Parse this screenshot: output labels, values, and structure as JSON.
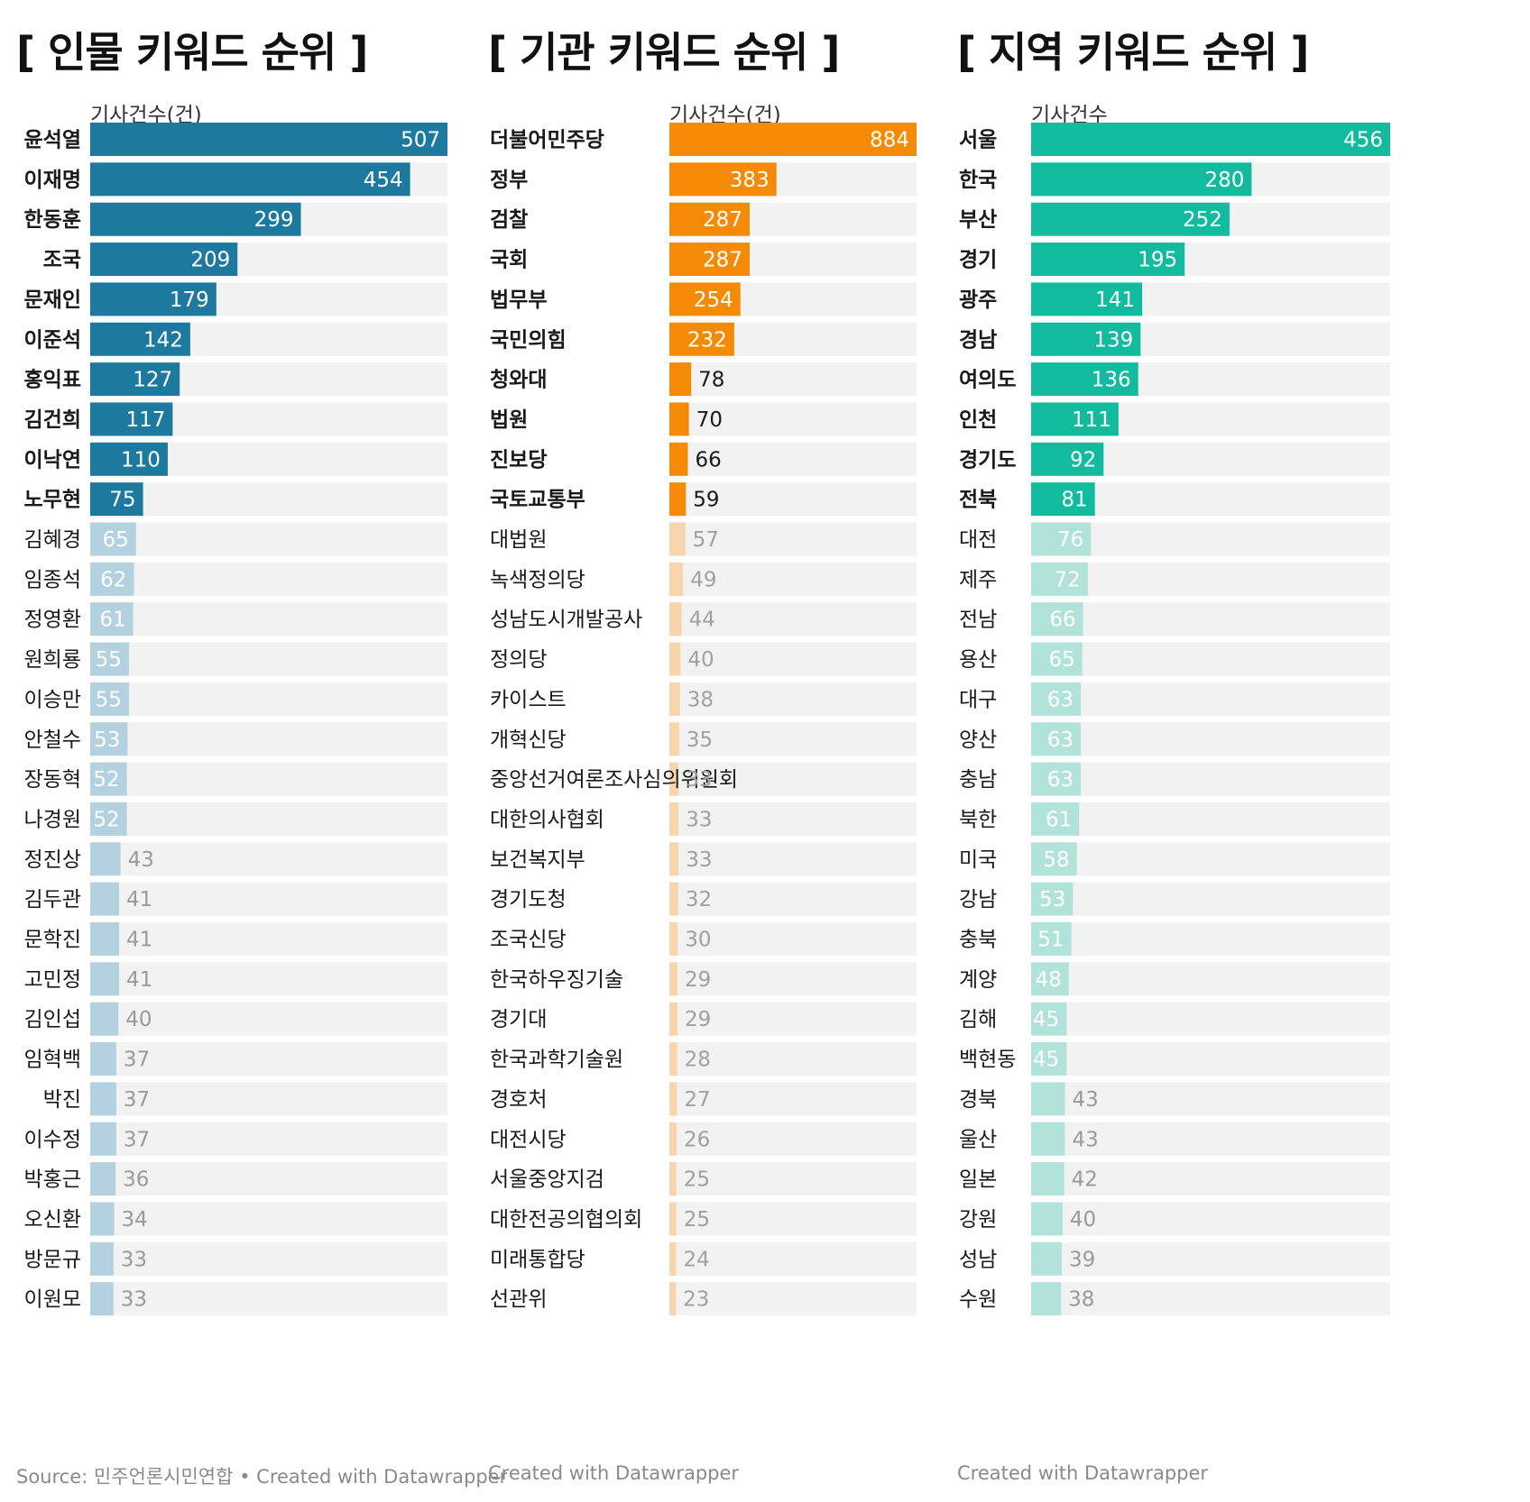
{
  "panels": [
    {
      "title": "[ 인물 키워드 순위 ]",
      "axis_label": "기사건수(건)",
      "footer": "Source: 민주언론시민연합 • Created with Datawrapper",
      "colors": {
        "highlight": "#1d7a9e",
        "muted": "#b3d1de",
        "track": "#f2f2f2",
        "label_in_highlight": "#ffffff",
        "label_in_muted": "#ffffff",
        "label_outside": "#9a9a9a"
      }
    },
    {
      "title": "[ 기관 키워드 순위 ]",
      "axis_label": "기사건수(건)",
      "footer": "Created with Datawrapper",
      "colors": {
        "highlight": "#f58a07",
        "muted": "#f7d6ad",
        "track": "#f2f2f2",
        "label_in_highlight": "#ffffff",
        "label_in_muted": "#b0b0b0",
        "label_outside_highlight": "#1a1a1a",
        "label_outside": "#a0a0a0"
      }
    },
    {
      "title": "[ 지역 키워드 순위 ]",
      "axis_label": "기사건수",
      "footer": "Created with Datawrapper",
      "colors": {
        "highlight": "#12bb9d",
        "muted": "#b2e3da",
        "track": "#f2f2f2",
        "label_in_highlight": "#ffffff",
        "label_in_muted": "#ffffff",
        "label_outside": "#9a9a9a"
      }
    }
  ],
  "chart_data": [
    {
      "type": "bar",
      "orientation": "horizontal",
      "title": "[ 인물 키워드 순위 ]",
      "xlabel": "기사건수(건)",
      "xlim": [
        0,
        507
      ],
      "highlight_top_n": 10,
      "categories": [
        "윤석열",
        "이재명",
        "한동훈",
        "조국",
        "문재인",
        "이준석",
        "홍익표",
        "김건희",
        "이낙연",
        "노무현",
        "김혜경",
        "임종석",
        "정영환",
        "원희룡",
        "이승만",
        "안철수",
        "장동혁",
        "나경원",
        "정진상",
        "김두관",
        "문학진",
        "고민정",
        "김인섭",
        "임혁백",
        "박진",
        "이수정",
        "박홍근",
        "오신환",
        "방문규",
        "이원모"
      ],
      "values": [
        507,
        454,
        299,
        209,
        179,
        142,
        127,
        117,
        110,
        75,
        65,
        62,
        61,
        55,
        55,
        53,
        52,
        52,
        43,
        41,
        41,
        41,
        40,
        37,
        37,
        37,
        36,
        34,
        33,
        33
      ]
    },
    {
      "type": "bar",
      "orientation": "horizontal",
      "title": "[ 기관 키워드 순위 ]",
      "xlabel": "기사건수(건)",
      "xlim": [
        0,
        884
      ],
      "highlight_top_n": 10,
      "categories": [
        "더불어민주당",
        "정부",
        "검찰",
        "국회",
        "법무부",
        "국민의힘",
        "청와대",
        "법원",
        "진보당",
        "국토교통부",
        "대법원",
        "녹색정의당",
        "성남도시개발공사",
        "정의당",
        "카이스트",
        "개혁신당",
        "중앙선거여론조사심의위원회",
        "대한의사협회",
        "보건복지부",
        "경기도청",
        "조국신당",
        "한국하우징기술",
        "경기대",
        "한국과학기술원",
        "경호처",
        "대전시당",
        "서울중앙지검",
        "대한전공의협의회",
        "미래통합당",
        "선관위"
      ],
      "values": [
        884,
        383,
        287,
        287,
        254,
        232,
        78,
        70,
        66,
        59,
        57,
        49,
        44,
        40,
        38,
        35,
        33,
        33,
        33,
        32,
        30,
        29,
        29,
        28,
        27,
        26,
        25,
        25,
        24,
        23
      ]
    },
    {
      "type": "bar",
      "orientation": "horizontal",
      "title": "[ 지역 키워드 순위 ]",
      "xlabel": "기사건수",
      "xlim": [
        0,
        456
      ],
      "highlight_top_n": 10,
      "categories": [
        "서울",
        "한국",
        "부산",
        "경기",
        "광주",
        "경남",
        "여의도",
        "인천",
        "경기도",
        "전북",
        "대전",
        "제주",
        "전남",
        "용산",
        "대구",
        "양산",
        "충남",
        "북한",
        "미국",
        "강남",
        "충북",
        "계양",
        "김해",
        "백현동",
        "경북",
        "울산",
        "일본",
        "강원",
        "성남",
        "수원"
      ],
      "values": [
        456,
        280,
        252,
        195,
        141,
        139,
        136,
        111,
        92,
        81,
        76,
        72,
        66,
        65,
        63,
        63,
        63,
        61,
        58,
        53,
        51,
        48,
        45,
        45,
        43,
        43,
        42,
        40,
        39,
        38
      ]
    }
  ]
}
